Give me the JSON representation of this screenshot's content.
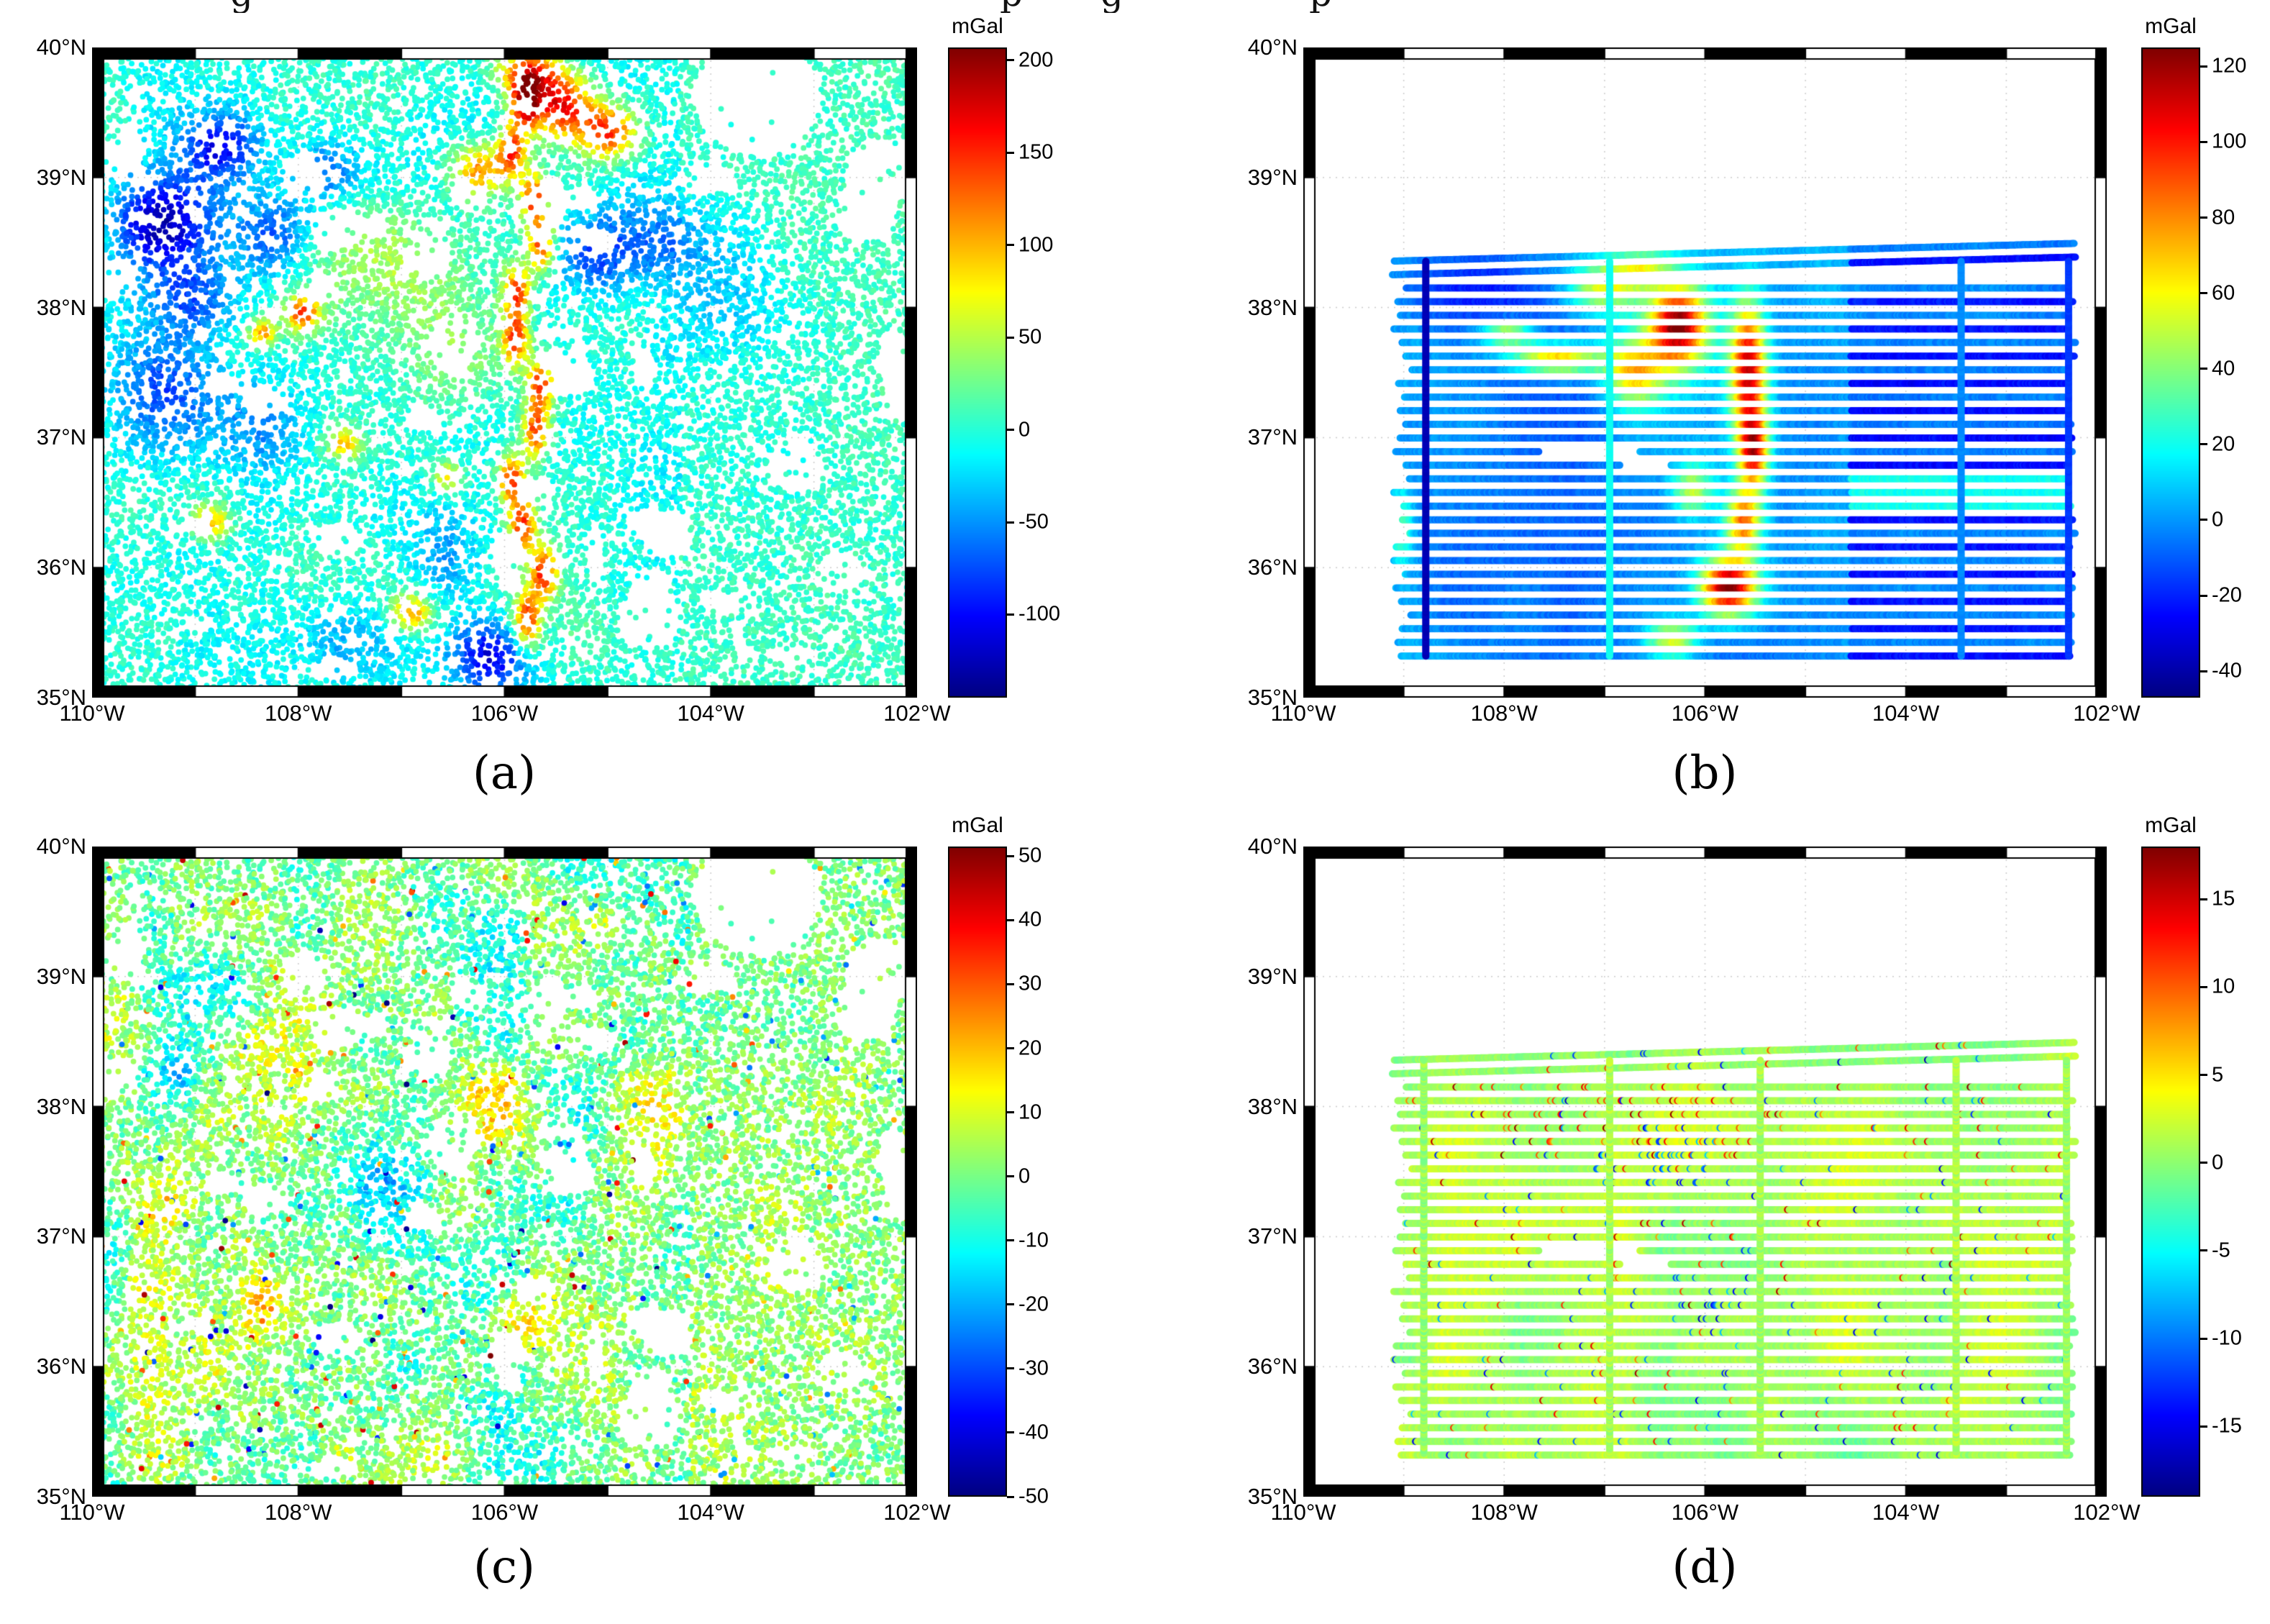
{
  "figure": {
    "caption_fragments": [
      "g",
      "p",
      "g",
      "p"
    ],
    "unit": "mGal"
  },
  "chart_data": [
    {
      "panel": "a",
      "panel_label": "(a)",
      "type": "scatter",
      "x_tick_labels": [
        "110°W",
        "108°W",
        "106°W",
        "104°W",
        "102°W"
      ],
      "y_tick_labels": [
        "40°N",
        "39°N",
        "38°N",
        "37°N",
        "36°N",
        "35°N"
      ],
      "lon_range": [
        -110,
        -102
      ],
      "lat_range": [
        35,
        40
      ],
      "grid": true,
      "colorbar": {
        "title": "mGal",
        "tick_values": [
          200,
          150,
          100,
          50,
          0,
          -50,
          -100
        ],
        "value_range": [
          -145,
          207
        ],
        "colormap": "jet"
      },
      "description": "Dense terrestrial point gravity anomalies: cyan/teal background near -20 to +30 mGal, dark-blue lows along northwest drainages and near 106.2W 35.3N, red/orange highs above 150 mGal along a north-south ridge near 105.8W and clustered around 105.5W 39.5N; uniform cyan east of 104.3W with a white data gap near 103.5W 39.6N."
    },
    {
      "panel": "b",
      "panel_label": "(b)",
      "type": "scatter",
      "x_tick_labels": [
        "110°W",
        "108°W",
        "106°W",
        "104°W",
        "102°W"
      ],
      "y_tick_labels": [
        "40°N",
        "39°N",
        "38°N",
        "37°N",
        "36°N",
        "35°N"
      ],
      "lon_range": [
        -110,
        -102
      ],
      "lat_range": [
        35,
        40
      ],
      "grid": true,
      "colorbar": {
        "title": "mGal",
        "tick_values": [
          120,
          100,
          80,
          60,
          40,
          20,
          0,
          -20,
          -40
        ],
        "value_range": [
          -47,
          125
        ],
        "colormap": "jet"
      },
      "description": "Airborne gravity along east-west flight lines (about 0.1 degree spacing, 35.3N to 38.4N, 109W to 102.3W) with north-south tie lines near 108.8W (dark blue), 106.9W (teal), 103.5W and 102.4W; blue background with red/orange highs near 106W-105.5W between 35.8N and 38.1N and darker blue lines east of 104.5W."
    },
    {
      "panel": "c",
      "panel_label": "(c)",
      "type": "scatter",
      "x_tick_labels": [
        "110°W",
        "108°W",
        "106°W",
        "104°W",
        "102°W"
      ],
      "y_tick_labels": [
        "40°N",
        "39°N",
        "38°N",
        "37°N",
        "36°N",
        "35°N"
      ],
      "lon_range": [
        -110,
        -102
      ],
      "lat_range": [
        35,
        40
      ],
      "grid": true,
      "colorbar": {
        "title": "mGal",
        "tick_values": [
          50,
          40,
          30,
          20,
          10,
          0,
          -10,
          -20,
          -30,
          -40,
          -50
        ],
        "value_range": [
          -50,
          51.5
        ],
        "colormap": "jet"
      },
      "description": "Residuals at the terrestrial points: mostly green/teal near 0 mGal with mottled yellow patches and scattered red/orange and blue outliers up to about +/-50 mGal, denser west of 104.5W."
    },
    {
      "panel": "d",
      "panel_label": "(d)",
      "type": "scatter",
      "x_tick_labels": [
        "110°W",
        "108°W",
        "106°W",
        "104°W",
        "102°W"
      ],
      "y_tick_labels": [
        "40°N",
        "39°N",
        "38°N",
        "37°N",
        "36°N",
        "35°N"
      ],
      "lon_range": [
        -110,
        -102
      ],
      "lat_range": [
        35,
        40
      ],
      "grid": true,
      "colorbar": {
        "title": "mGal",
        "tick_values": [
          15,
          10,
          5,
          0,
          -5,
          -10,
          -15
        ],
        "value_range": [
          -19,
          18
        ],
        "colormap": "jet"
      },
      "description": "Residuals along the flight and tie lines: mostly green near 0 mGal with scattered red/orange highs and blue lows of roughly +/-15 mGal concentrated between 37.4N and 38.3N west of 105W."
    }
  ]
}
